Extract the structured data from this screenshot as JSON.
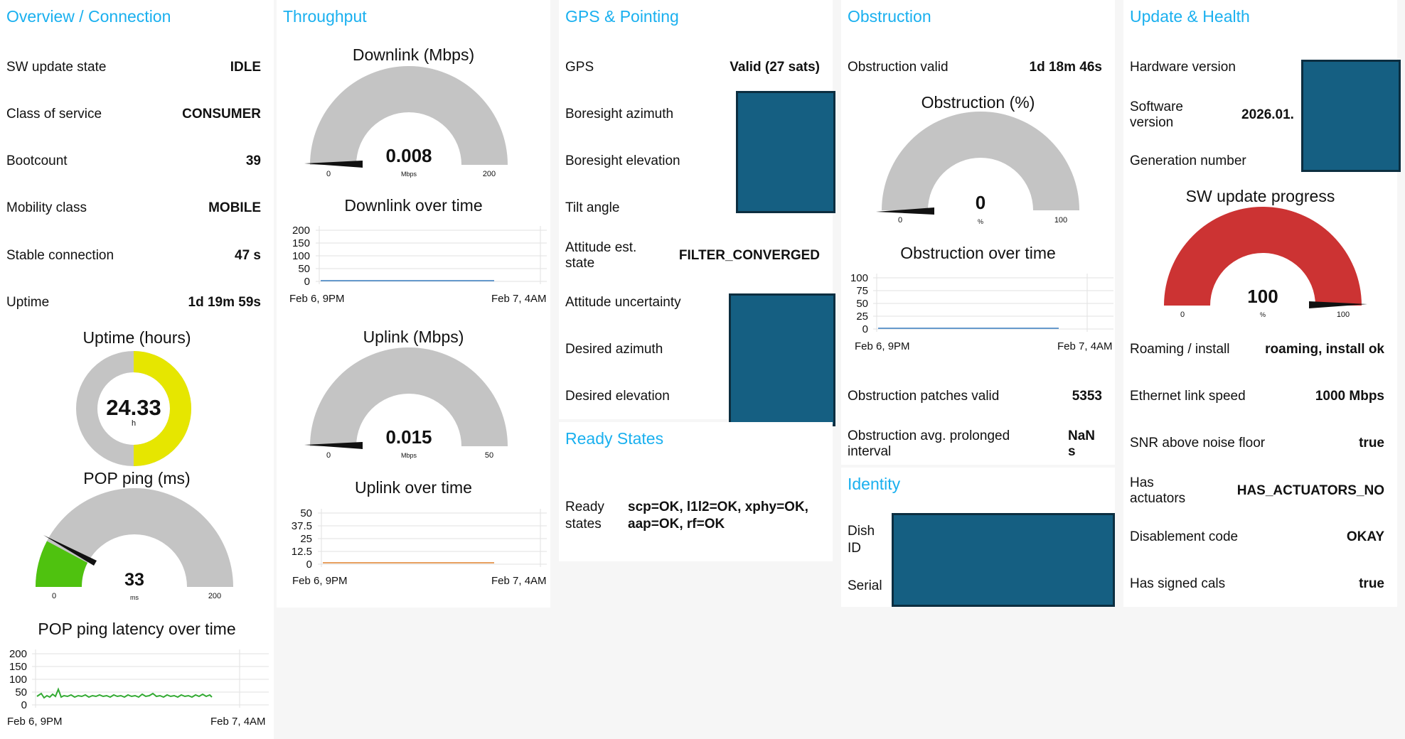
{
  "colors": {
    "accent": "#1ab0ef",
    "gauge_track": "#c4c4c4",
    "yellow": "#e6e600",
    "green": "#4fc20f",
    "red": "#cc3333",
    "blue_line": "#6699cc",
    "orange_line": "#e8a060",
    "green_line": "#33aa33",
    "redaction": "#155f82"
  },
  "overview": {
    "title": "Overview / Connection",
    "rows": [
      {
        "label": "SW update state",
        "value": "IDLE"
      },
      {
        "label": "Class of service",
        "value": "CONSUMER"
      },
      {
        "label": "Bootcount",
        "value": "39"
      },
      {
        "label": "Mobility class",
        "value": "MOBILE"
      },
      {
        "label": "Stable connection",
        "value": "47 s"
      },
      {
        "label": "Uptime",
        "value": "1d 19m 59s"
      }
    ],
    "uptime_chart": {
      "title": "Uptime (hours)",
      "value": "24.33",
      "unit": "h",
      "fraction": 0.5
    },
    "ping_gauge": {
      "title": "POP ping (ms)",
      "value": "33",
      "unit": "ms",
      "min": "0",
      "max": "200",
      "fraction": 0.165
    },
    "ping_chart": {
      "title": "POP ping latency over time",
      "yticks": [
        "200",
        "150",
        "100",
        "50",
        "0"
      ],
      "xstart": "Feb 6, 9PM",
      "xend": "Feb 7, 4AM"
    }
  },
  "throughput": {
    "title": "Throughput",
    "down_gauge": {
      "title": "Downlink (Mbps)",
      "value": "0.008",
      "unit": "Mbps",
      "min": "0",
      "max": "200",
      "fraction": 0.0
    },
    "down_chart": {
      "title": "Downlink over time",
      "yticks": [
        "200",
        "150",
        "100",
        "50",
        "0"
      ],
      "xstart": "Feb 6, 9PM",
      "xend": "Feb 7, 4AM"
    },
    "up_gauge": {
      "title": "Uplink (Mbps)",
      "value": "0.015",
      "unit": "Mbps",
      "min": "0",
      "max": "50",
      "fraction": 0.0
    },
    "up_chart": {
      "title": "Uplink over time",
      "yticks": [
        "50",
        "37.5",
        "25",
        "12.5",
        "0"
      ],
      "xstart": "Feb 6, 9PM",
      "xend": "Feb 7, 4AM"
    }
  },
  "gps": {
    "title": "GPS & Pointing",
    "rows": [
      {
        "label": "GPS",
        "value": "Valid (27 sats)"
      },
      {
        "label": "Boresight azimuth",
        "value": ""
      },
      {
        "label": "Boresight elevation",
        "value": ""
      },
      {
        "label": "Tilt angle",
        "value": ""
      },
      {
        "label": "Attitude est. state",
        "value": "FILTER_CONVERGED"
      },
      {
        "label": "Attitude uncertainty",
        "value": ""
      },
      {
        "label": "Desired azimuth",
        "value": ""
      },
      {
        "label": "Desired elevation",
        "value": ""
      }
    ],
    "ready_title": "Ready States",
    "ready_label": "Ready states",
    "ready_value": "scp=OK, l1l2=OK, xphy=OK, aap=OK, rf=OK"
  },
  "obstruction": {
    "title": "Obstruction",
    "valid_label": "Obstruction valid",
    "valid_value": "1d 18m 46s",
    "gauge": {
      "title": "Obstruction (%)",
      "value": "0",
      "unit": "%",
      "min": "0",
      "max": "100",
      "fraction": 0.0
    },
    "chart": {
      "title": "Obstruction over time",
      "yticks": [
        "100",
        "75",
        "50",
        "25",
        "0"
      ],
      "xstart": "Feb 6, 9PM",
      "xend": "Feb 7, 4AM"
    },
    "patches_label": "Obstruction patches valid",
    "patches_value": "5353",
    "interval_label": "Obstruction avg. prolonged interval",
    "interval_value": "NaN s",
    "identity_title": "Identity",
    "dish_id_label": "Dish ID",
    "serial_label": "Serial"
  },
  "health": {
    "title": "Update & Health",
    "hw_label": "Hardware version",
    "sw_label": "Software version",
    "sw_value": "2026.01.",
    "gen_label": "Generation number",
    "gauge": {
      "title": "SW update progress",
      "value": "100",
      "unit": "%",
      "min": "0",
      "max": "100",
      "fraction": 1.0
    },
    "rows": [
      {
        "label": "Roaming / install",
        "value": "roaming, install ok"
      },
      {
        "label": "Ethernet link speed",
        "value": "1000 Mbps"
      },
      {
        "label": "SNR above noise floor",
        "value": "true"
      },
      {
        "label": "Has actuators",
        "value": "HAS_ACTUATORS_NO"
      },
      {
        "label": "Disablement code",
        "value": "OKAY"
      },
      {
        "label": "Has signed cals",
        "value": "true"
      }
    ]
  }
}
